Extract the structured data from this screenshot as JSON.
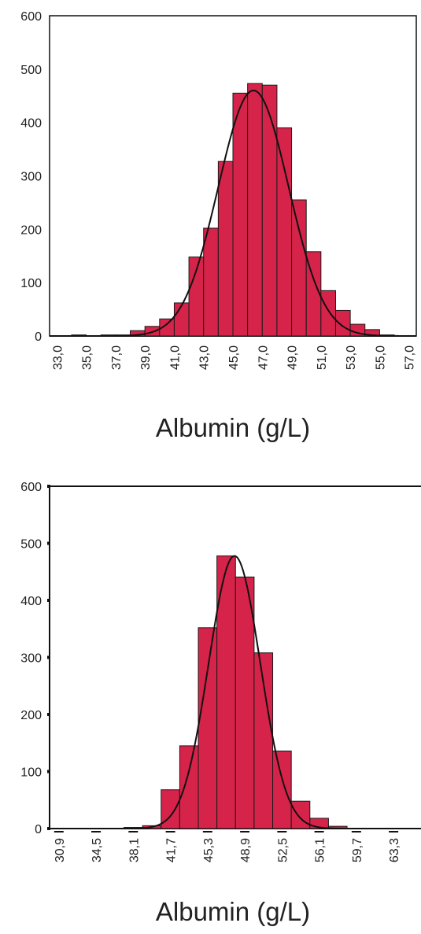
{
  "chart_data": [
    {
      "type": "bar",
      "xlabel": "Albumin (g/L)",
      "ylabel": "",
      "ylim": [
        0,
        600
      ],
      "y_ticks": [
        "600",
        "500",
        "400",
        "300",
        "200",
        "100",
        "0"
      ],
      "x_ticks": [
        "33,0",
        "35,0",
        "37,0",
        "39,0",
        "41,0",
        "43,0",
        "45,0",
        "47,0",
        "49,0",
        "51,0",
        "53,0",
        "55,0",
        "57,0"
      ],
      "bins": [
        {
          "x0": 33.0,
          "x1": 34.0,
          "value": 0
        },
        {
          "x0": 34.0,
          "x1": 35.0,
          "value": 2
        },
        {
          "x0": 35.0,
          "x1": 36.0,
          "value": 0
        },
        {
          "x0": 36.0,
          "x1": 37.0,
          "value": 2
        },
        {
          "x0": 37.0,
          "x1": 38.0,
          "value": 2
        },
        {
          "x0": 38.0,
          "x1": 39.0,
          "value": 10
        },
        {
          "x0": 39.0,
          "x1": 40.0,
          "value": 18
        },
        {
          "x0": 40.0,
          "x1": 41.0,
          "value": 32
        },
        {
          "x0": 41.0,
          "x1": 42.0,
          "value": 62
        },
        {
          "x0": 42.0,
          "x1": 43.0,
          "value": 148
        },
        {
          "x0": 43.0,
          "x1": 44.0,
          "value": 202
        },
        {
          "x0": 44.0,
          "x1": 45.0,
          "value": 327
        },
        {
          "x0": 45.0,
          "x1": 46.0,
          "value": 455
        },
        {
          "x0": 46.0,
          "x1": 47.0,
          "value": 473
        },
        {
          "x0": 47.0,
          "x1": 48.0,
          "value": 470
        },
        {
          "x0": 48.0,
          "x1": 49.0,
          "value": 390
        },
        {
          "x0": 49.0,
          "x1": 50.0,
          "value": 255
        },
        {
          "x0": 50.0,
          "x1": 51.0,
          "value": 158
        },
        {
          "x0": 51.0,
          "x1": 52.0,
          "value": 85
        },
        {
          "x0": 52.0,
          "x1": 53.0,
          "value": 48
        },
        {
          "x0": 53.0,
          "x1": 54.0,
          "value": 22
        },
        {
          "x0": 54.0,
          "x1": 55.0,
          "value": 12
        },
        {
          "x0": 55.0,
          "x1": 56.0,
          "value": 2
        },
        {
          "x0": 56.0,
          "x1": 57.0,
          "value": 0
        }
      ],
      "curve": {
        "type": "normal",
        "peak": 460,
        "mean": 46.4,
        "sd": 2.4
      },
      "xlim": [
        32.5,
        57.5
      ],
      "bar_color": "#d6234a",
      "frame": "box"
    },
    {
      "type": "bar",
      "xlabel": "Albumin (g/L)",
      "ylabel": "",
      "ylim": [
        0,
        600
      ],
      "y_ticks": [
        "600",
        "500",
        "400",
        "300",
        "200",
        "100",
        "0"
      ],
      "x_ticks": [
        "30,9",
        "34,5",
        "38,1",
        "41,7",
        "45,3",
        "48,9",
        "52,5",
        "56,1",
        "59,7",
        "63,3"
      ],
      "bins": [
        {
          "x0": 37.2,
          "x1": 39.0,
          "value": 2
        },
        {
          "x0": 39.0,
          "x1": 40.8,
          "value": 5
        },
        {
          "x0": 40.8,
          "x1": 42.6,
          "value": 68
        },
        {
          "x0": 42.6,
          "x1": 44.4,
          "value": 145
        },
        {
          "x0": 44.4,
          "x1": 46.2,
          "value": 352
        },
        {
          "x0": 46.2,
          "x1": 48.0,
          "value": 478
        },
        {
          "x0": 48.0,
          "x1": 49.8,
          "value": 441
        },
        {
          "x0": 49.8,
          "x1": 51.6,
          "value": 308
        },
        {
          "x0": 51.6,
          "x1": 53.4,
          "value": 136
        },
        {
          "x0": 53.4,
          "x1": 55.2,
          "value": 48
        },
        {
          "x0": 55.2,
          "x1": 57.0,
          "value": 18
        },
        {
          "x0": 57.0,
          "x1": 58.8,
          "value": 4
        }
      ],
      "curve": {
        "type": "normal",
        "peak": 478,
        "mean": 47.9,
        "sd": 2.5
      },
      "xlim": [
        30.0,
        65.5
      ],
      "bar_color": "#d6234a",
      "frame": "top-left"
    }
  ]
}
